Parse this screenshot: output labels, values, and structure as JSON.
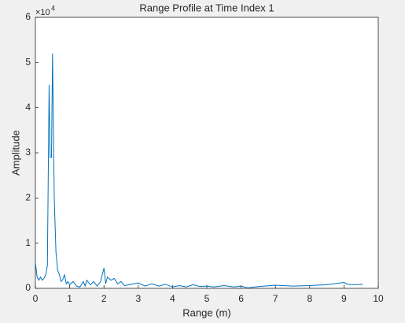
{
  "chart_data": {
    "type": "line",
    "title": "Range Profile at Time Index 1",
    "xlabel": "Range (m)",
    "ylabel": "Amplitude",
    "yscale_label": {
      "base": "×10",
      "exponent": "4"
    },
    "x": [
      0,
      0.05,
      0.1,
      0.15,
      0.2,
      0.25,
      0.3,
      0.35,
      0.4,
      0.43,
      0.47,
      0.5,
      0.55,
      0.6,
      0.65,
      0.7,
      0.75,
      0.8,
      0.85,
      0.9,
      0.95,
      1.0,
      1.1,
      1.2,
      1.3,
      1.4,
      1.45,
      1.5,
      1.6,
      1.7,
      1.8,
      1.9,
      2.0,
      2.05,
      2.1,
      2.2,
      2.3,
      2.4,
      2.5,
      2.6,
      2.8,
      3.0,
      3.2,
      3.4,
      3.6,
      3.8,
      4.0,
      4.2,
      4.4,
      4.6,
      4.8,
      5.0,
      5.2,
      5.5,
      5.8,
      6.0,
      6.2,
      6.5,
      7.0,
      7.5,
      8.0,
      8.5,
      9.0,
      9.1,
      9.3,
      9.55
    ],
    "series": [
      {
        "color": "#0072bd",
        "values": [
          5800,
          2500,
          1800,
          2500,
          1800,
          2200,
          3000,
          5000,
          45000,
          29000,
          29000,
          52000,
          20000,
          8000,
          4000,
          3000,
          1500,
          2000,
          3000,
          1000,
          1500,
          800,
          1500,
          500,
          300,
          1500,
          500,
          1800,
          800,
          1500,
          500,
          1500,
          4500,
          1000,
          2500,
          1800,
          2200,
          1000,
          1500,
          600,
          900,
          1200,
          500,
          1000,
          500,
          900,
          300,
          600,
          300,
          800,
          400,
          500,
          300,
          600,
          300,
          500,
          100,
          400,
          700,
          500,
          600,
          800,
          1300,
          900,
          800,
          900
        ]
      }
    ],
    "xlim": [
      0,
      10
    ],
    "xticks": [
      0,
      1,
      2,
      3,
      4,
      5,
      6,
      7,
      8,
      9,
      10
    ],
    "ylim": [
      0,
      60000
    ],
    "yticks": [
      {
        "value": 0,
        "label": "0"
      },
      {
        "value": 10000,
        "label": "1"
      },
      {
        "value": 20000,
        "label": "2"
      },
      {
        "value": 30000,
        "label": "3"
      },
      {
        "value": 40000,
        "label": "4"
      },
      {
        "value": 50000,
        "label": "5"
      },
      {
        "value": 60000,
        "label": "6"
      }
    ],
    "grid": false
  }
}
